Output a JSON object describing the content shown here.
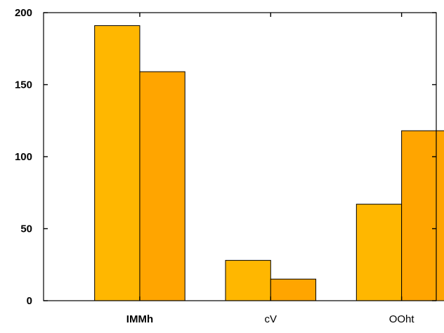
{
  "chart_data": {
    "type": "bar",
    "categories": [
      "IMMh",
      "cV",
      "OOht"
    ],
    "category_bold": [
      true,
      false,
      false
    ],
    "series": [
      {
        "values": [
          191,
          28,
          67
        ],
        "color": "#FFB700"
      },
      {
        "values": [
          159,
          15,
          118
        ],
        "color": "#FFA500"
      }
    ],
    "ylim": [
      0,
      200
    ],
    "yticks": [
      0,
      50,
      100,
      150,
      200
    ],
    "grid": false,
    "title": "",
    "xlabel": "",
    "ylabel": ""
  }
}
